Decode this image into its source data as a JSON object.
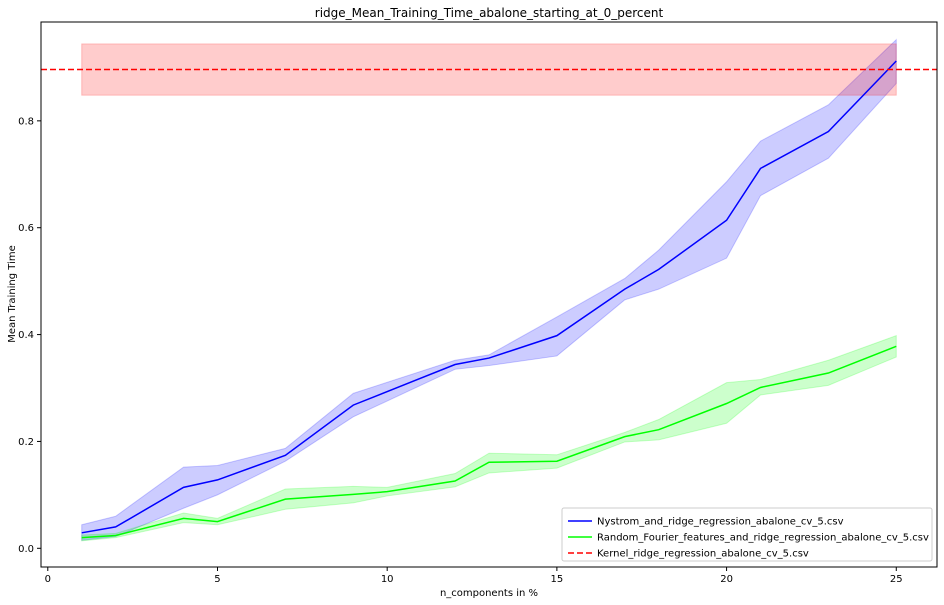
{
  "chart_data": {
    "type": "line",
    "title": "ridge_Mean_Training_Time_abalone_starting_at_0_percent",
    "xlabel": "n_components in %",
    "ylabel": "Mean Training Time",
    "xlim": [
      -0.2,
      26.2
    ],
    "ylim": [
      -0.035,
      0.985
    ],
    "xticks": [
      0,
      5,
      10,
      15,
      20,
      25
    ],
    "xtick_labels": [
      "0",
      "5",
      "10",
      "15",
      "20",
      "25"
    ],
    "yticks": [
      0.0,
      0.2,
      0.4,
      0.6,
      0.8
    ],
    "ytick_labels": [
      "0.0",
      "0.2",
      "0.4",
      "0.6",
      "0.8"
    ],
    "grid": false,
    "legend_position": "lower-right",
    "series": [
      {
        "name": "Nystrom_and_ridge_regression_abalone_cv_5.csv",
        "color": "#0000ff",
        "band_color": "#0000ff",
        "x": [
          1,
          2,
          4,
          5,
          7,
          9,
          12,
          13,
          15,
          17,
          18,
          20,
          21,
          23,
          25
        ],
        "y": [
          0.029,
          0.04,
          0.114,
          0.128,
          0.174,
          0.268,
          0.344,
          0.356,
          0.398,
          0.485,
          0.522,
          0.614,
          0.711,
          0.78,
          0.912
        ],
        "lower": [
          0.015,
          0.022,
          0.075,
          0.1,
          0.163,
          0.246,
          0.335,
          0.342,
          0.36,
          0.465,
          0.485,
          0.543,
          0.66,
          0.73,
          0.87
        ],
        "upper": [
          0.044,
          0.06,
          0.152,
          0.155,
          0.187,
          0.29,
          0.352,
          0.362,
          0.433,
          0.505,
          0.558,
          0.686,
          0.762,
          0.83,
          0.952
        ]
      },
      {
        "name": "Random_Fourier_features_and_ridge_regression_abalone_cv_5.csv",
        "color": "#00ff00",
        "band_color": "#00ff00",
        "x": [
          1,
          2,
          4,
          5,
          7,
          9,
          10,
          12,
          13,
          15,
          17,
          18,
          20,
          21,
          23,
          25
        ],
        "y": [
          0.02,
          0.024,
          0.056,
          0.05,
          0.092,
          0.101,
          0.106,
          0.126,
          0.161,
          0.163,
          0.209,
          0.222,
          0.271,
          0.301,
          0.328,
          0.378
        ],
        "lower": [
          0.014,
          0.02,
          0.048,
          0.044,
          0.073,
          0.085,
          0.098,
          0.115,
          0.141,
          0.15,
          0.199,
          0.203,
          0.234,
          0.287,
          0.305,
          0.358
        ],
        "upper": [
          0.025,
          0.028,
          0.066,
          0.056,
          0.111,
          0.116,
          0.114,
          0.14,
          0.178,
          0.175,
          0.217,
          0.241,
          0.31,
          0.316,
          0.352,
          0.398
        ]
      },
      {
        "name": "Kernel_ridge_regression_abalone_cv_5.csv",
        "color": "#ff0000",
        "band_color": "#ff0000",
        "style": "dashed",
        "y": 0.896,
        "band_x": [
          1,
          25
        ],
        "band_lower": 0.848,
        "band_upper": 0.944
      }
    ]
  }
}
